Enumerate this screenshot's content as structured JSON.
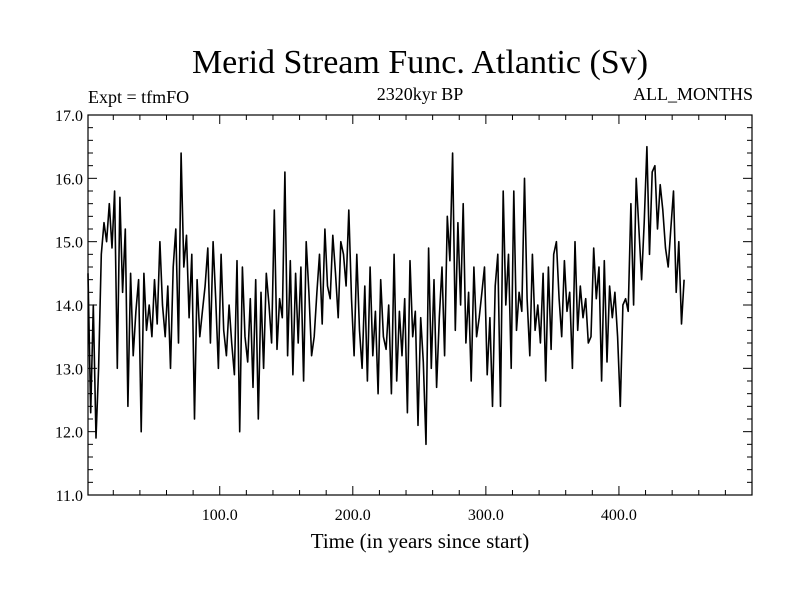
{
  "chart_data": {
    "type": "line",
    "title": "Merid Stream Func. Atlantic (Sv)",
    "subtitle_left": "Expt = tfmFO",
    "subtitle_center": "2320kyr BP",
    "subtitle_right": "ALL_MONTHS",
    "xlabel": "Time (in years since start)",
    "ylabel": "",
    "xlim": [
      1,
      500
    ],
    "ylim": [
      11.0,
      17.0
    ],
    "x_ticks": [
      100,
      200,
      300,
      400
    ],
    "x_tick_labels": [
      "100.0",
      "200.0",
      "300.0",
      "400.0"
    ],
    "y_ticks": [
      11,
      12,
      13,
      14,
      15,
      16,
      17
    ],
    "y_tick_labels": [
      "11.0",
      "12.0",
      "13.0",
      "14.0",
      "15.0",
      "16.0",
      "17.0"
    ],
    "series": [
      {
        "name": "Merid Stream Func. Atlantic",
        "color": "#000000",
        "x_start": 1,
        "x_step": 2,
        "values": [
          14.5,
          12.3,
          14.0,
          11.9,
          13.0,
          14.8,
          15.3,
          15.0,
          15.6,
          14.9,
          15.8,
          13.0,
          15.7,
          14.2,
          15.2,
          12.4,
          14.5,
          13.2,
          13.9,
          14.4,
          12.0,
          14.5,
          13.6,
          14.0,
          13.5,
          14.4,
          13.7,
          15.0,
          14.0,
          13.5,
          14.3,
          13.0,
          14.6,
          15.2,
          13.4,
          16.4,
          14.6,
          15.1,
          13.8,
          14.8,
          12.2,
          14.4,
          13.5,
          13.9,
          14.3,
          14.9,
          13.4,
          15.0,
          14.1,
          13.0,
          14.8,
          13.6,
          13.2,
          14.0,
          13.4,
          12.9,
          14.7,
          12.0,
          14.6,
          13.5,
          13.1,
          14.1,
          12.7,
          14.4,
          12.2,
          14.2,
          13.0,
          14.5,
          14.0,
          13.4,
          15.5,
          13.3,
          14.1,
          13.8,
          16.1,
          13.2,
          14.7,
          12.9,
          14.5,
          13.4,
          14.6,
          12.8,
          15.0,
          14.2,
          13.2,
          13.5,
          14.2,
          14.8,
          13.7,
          15.2,
          14.3,
          14.1,
          15.1,
          14.5,
          13.8,
          15.0,
          14.8,
          14.3,
          15.5,
          14.1,
          13.2,
          14.8,
          13.6,
          13.0,
          14.3,
          12.8,
          14.6,
          13.2,
          13.9,
          12.6,
          14.4,
          13.5,
          13.3,
          14.0,
          12.6,
          14.8,
          12.8,
          13.9,
          13.2,
          14.1,
          12.3,
          14.7,
          13.5,
          13.9,
          12.1,
          13.8,
          13.1,
          11.8,
          14.9,
          13.0,
          14.4,
          12.7,
          13.8,
          14.6,
          13.2,
          15.4,
          14.7,
          16.4,
          13.6,
          15.3,
          14.0,
          15.6,
          13.4,
          14.2,
          12.8,
          14.6,
          13.5,
          13.8,
          14.2,
          14.6,
          12.9,
          13.8,
          12.4,
          14.3,
          14.8,
          12.4,
          15.8,
          14.0,
          14.8,
          13.0,
          15.8,
          13.6,
          14.2,
          13.9,
          16.0,
          14.1,
          13.2,
          14.8,
          13.6,
          14.0,
          13.4,
          14.5,
          12.8,
          14.6,
          13.3,
          14.8,
          15.0,
          14.1,
          13.5,
          14.7,
          13.9,
          14.2,
          13.0,
          15.0,
          13.6,
          14.3,
          13.8,
          14.1,
          13.4,
          13.5,
          14.9,
          14.1,
          14.6,
          12.8,
          14.7,
          13.1,
          14.3,
          13.8,
          14.2,
          13.5,
          12.4,
          14.0,
          14.1,
          13.9,
          15.6,
          14.0,
          16.0,
          15.2,
          14.4,
          15.3,
          16.5,
          14.8,
          16.1,
          16.2,
          15.2,
          15.9,
          15.5,
          14.9,
          14.6,
          15.2,
          15.8,
          14.2,
          15.0,
          13.7,
          14.4
        ]
      }
    ]
  }
}
